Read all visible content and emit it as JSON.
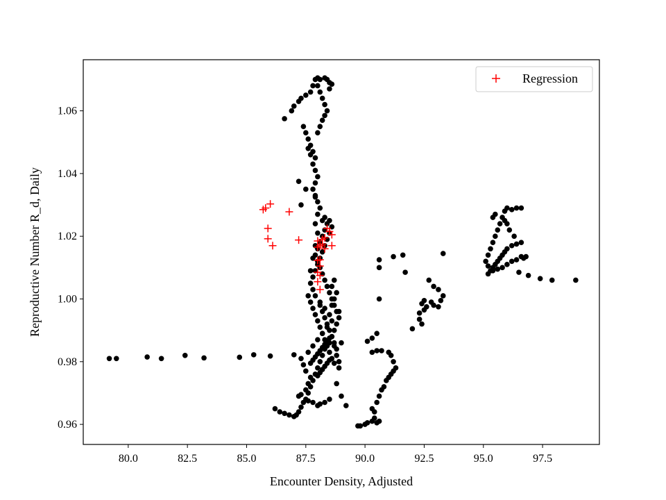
{
  "chart_data": {
    "type": "scatter",
    "xlabel": "Encounter Density, Adjusted",
    "ylabel": "Reproductive Number R_d, Daily",
    "xlim": [
      78.1,
      99.9
    ],
    "ylim": [
      0.9536,
      1.0763
    ],
    "xticks": [
      80.0,
      82.5,
      85.0,
      87.5,
      90.0,
      92.5,
      95.0,
      97.5
    ],
    "xtick_labels": [
      "80.0",
      "82.5",
      "85.0",
      "87.5",
      "90.0",
      "92.5",
      "95.0",
      "97.5"
    ],
    "yticks": [
      0.96,
      0.98,
      1.0,
      1.02,
      1.04,
      1.06
    ],
    "ytick_labels": [
      "0.96",
      "0.98",
      "1.00",
      "1.02",
      "1.04",
      "1.06"
    ],
    "grid": false,
    "legend": {
      "position": "top-right",
      "entries": [
        "Regression"
      ]
    },
    "series": [
      {
        "name": "",
        "marker": "circle",
        "color": "#000000",
        "points": [
          [
            79.2,
            0.981
          ],
          [
            79.5,
            0.981
          ],
          [
            80.8,
            0.9815
          ],
          [
            81.4,
            0.981
          ],
          [
            82.4,
            0.982
          ],
          [
            83.2,
            0.9812
          ],
          [
            84.7,
            0.9814
          ],
          [
            85.3,
            0.9822
          ],
          [
            86.0,
            0.9818
          ],
          [
            87.0,
            0.9822
          ],
          [
            86.2,
            0.965
          ],
          [
            86.4,
            0.964
          ],
          [
            86.6,
            0.9635
          ],
          [
            86.8,
            0.963
          ],
          [
            87.0,
            0.9625
          ],
          [
            87.1,
            0.963
          ],
          [
            87.2,
            0.964
          ],
          [
            87.3,
            0.9655
          ],
          [
            87.4,
            0.967
          ],
          [
            87.5,
            0.968
          ],
          [
            87.6,
            0.97
          ],
          [
            87.7,
            0.972
          ],
          [
            87.8,
            0.974
          ],
          [
            87.9,
            0.976
          ],
          [
            88.0,
            0.978
          ],
          [
            88.1,
            0.98
          ],
          [
            88.2,
            0.982
          ],
          [
            88.3,
            0.984
          ],
          [
            88.5,
            0.986
          ],
          [
            88.7,
            0.985
          ],
          [
            88.9,
            0.978
          ],
          [
            88.8,
            0.973
          ],
          [
            89.0,
            0.969
          ],
          [
            89.2,
            0.966
          ],
          [
            88.3,
            0.967
          ],
          [
            88.0,
            0.966
          ],
          [
            87.8,
            0.967
          ],
          [
            87.6,
            0.9675
          ],
          [
            88.5,
            0.968
          ],
          [
            88.1,
            0.9665
          ],
          [
            87.2,
            0.969
          ],
          [
            87.3,
            0.9695
          ],
          [
            87.5,
            0.971
          ],
          [
            87.6,
            0.973
          ],
          [
            87.7,
            0.975
          ],
          [
            87.5,
            0.977
          ],
          [
            87.3,
            0.981
          ],
          [
            87.4,
            0.979
          ],
          [
            87.6,
            0.983
          ],
          [
            87.8,
            0.985
          ],
          [
            88.0,
            0.987
          ],
          [
            88.2,
            0.989
          ],
          [
            88.4,
            0.991
          ],
          [
            88.6,
            0.993
          ],
          [
            88.5,
            0.995
          ],
          [
            88.3,
            0.997
          ],
          [
            88.1,
            0.999
          ],
          [
            87.9,
            1.001
          ],
          [
            87.8,
            1.003
          ],
          [
            87.7,
            1.005
          ],
          [
            87.8,
            1.007
          ],
          [
            87.9,
            1.009
          ],
          [
            88.0,
            1.011
          ],
          [
            88.1,
            1.013
          ],
          [
            88.2,
            1.015
          ],
          [
            88.3,
            1.017
          ],
          [
            88.4,
            1.019
          ],
          [
            88.5,
            1.021
          ],
          [
            88.6,
            1.023
          ],
          [
            88.5,
            1.025
          ],
          [
            88.3,
            1.026
          ],
          [
            88.2,
            1.025
          ],
          [
            88.4,
            1.024
          ],
          [
            88.3,
            1.022
          ],
          [
            88.2,
            1.02
          ],
          [
            88.1,
            1.018
          ],
          [
            88.0,
            1.016
          ],
          [
            87.9,
            1.014
          ],
          [
            88.0,
            1.012
          ],
          [
            88.1,
            1.01
          ],
          [
            88.2,
            1.008
          ],
          [
            88.3,
            1.006
          ],
          [
            88.4,
            1.004
          ],
          [
            88.5,
            1.002
          ],
          [
            88.6,
            1.0
          ],
          [
            88.7,
            0.998
          ],
          [
            88.8,
            0.996
          ],
          [
            88.9,
            0.994
          ],
          [
            88.8,
            0.992
          ],
          [
            88.7,
            0.99
          ],
          [
            88.6,
            0.988
          ],
          [
            88.5,
            0.9875
          ],
          [
            88.4,
            0.9865
          ],
          [
            88.3,
            0.9855
          ],
          [
            88.2,
            0.9845
          ],
          [
            88.1,
            0.9835
          ],
          [
            88.0,
            0.9825
          ],
          [
            87.9,
            0.9815
          ],
          [
            87.8,
            0.9805
          ],
          [
            87.7,
            0.9795
          ],
          [
            88.7,
            1.006
          ],
          [
            88.6,
            1.004
          ],
          [
            88.8,
            1.002
          ],
          [
            88.7,
            1.0
          ],
          [
            88.6,
            0.998
          ],
          [
            88.9,
            0.996
          ],
          [
            89.0,
            0.986
          ],
          [
            88.8,
            0.982
          ],
          [
            88.9,
            0.98
          ],
          [
            88.7,
            0.9795
          ],
          [
            88.6,
            0.981
          ],
          [
            88.5,
            0.983
          ],
          [
            88.4,
            0.985
          ],
          [
            88.3,
            0.987
          ],
          [
            88.2,
            0.989
          ],
          [
            88.1,
            0.991
          ],
          [
            88.0,
            0.993
          ],
          [
            87.9,
            0.995
          ],
          [
            87.8,
            0.997
          ],
          [
            87.7,
            0.999
          ],
          [
            87.6,
            1.001
          ],
          [
            87.7,
            1.009
          ],
          [
            87.8,
            1.013
          ],
          [
            87.9,
            1.017
          ],
          [
            88.0,
            1.021
          ],
          [
            87.9,
            1.024
          ],
          [
            88.0,
            1.027
          ],
          [
            88.1,
            1.029
          ],
          [
            88.0,
            1.031
          ],
          [
            87.9,
            1.033
          ],
          [
            87.8,
            1.035
          ],
          [
            87.9,
            1.037
          ],
          [
            88.0,
            1.039
          ],
          [
            87.9,
            1.041
          ],
          [
            87.8,
            1.043
          ],
          [
            87.9,
            1.045
          ],
          [
            87.8,
            1.047
          ],
          [
            87.7,
            1.049
          ],
          [
            87.6,
            1.051
          ],
          [
            87.5,
            1.053
          ],
          [
            87.4,
            1.055
          ],
          [
            87.6,
            1.048
          ],
          [
            87.7,
            1.046
          ],
          [
            87.2,
            1.0375
          ],
          [
            87.5,
            1.035
          ],
          [
            87.3,
            1.03
          ],
          [
            87.9,
            1.0325
          ],
          [
            86.6,
            1.0575
          ],
          [
            86.9,
            1.06
          ],
          [
            87.0,
            1.0615
          ],
          [
            87.2,
            1.063
          ],
          [
            87.3,
            1.064
          ],
          [
            87.5,
            1.065
          ],
          [
            87.7,
            1.066
          ],
          [
            87.8,
            1.068
          ],
          [
            87.9,
            1.07
          ],
          [
            88.0,
            1.0705
          ],
          [
            88.1,
            1.07
          ],
          [
            88.0,
            1.068
          ],
          [
            88.1,
            1.066
          ],
          [
            88.2,
            1.064
          ],
          [
            88.3,
            1.062
          ],
          [
            88.4,
            1.06
          ],
          [
            88.3,
            1.0585
          ],
          [
            88.2,
            1.057
          ],
          [
            88.1,
            1.055
          ],
          [
            88.0,
            1.053
          ],
          [
            88.4,
            1.07
          ],
          [
            88.5,
            1.069
          ],
          [
            88.6,
            1.0685
          ],
          [
            88.5,
            1.067
          ],
          [
            88.3,
            1.0705
          ],
          [
            88.1,
            0.998
          ],
          [
            88.2,
            0.996
          ],
          [
            88.3,
            0.994
          ],
          [
            88.4,
            0.992
          ],
          [
            88.5,
            0.99
          ],
          [
            88.6,
            0.988
          ],
          [
            88.7,
            0.986
          ],
          [
            88.8,
            0.984
          ],
          [
            88.3,
            0.9785
          ],
          [
            88.4,
            0.9795
          ],
          [
            88.5,
            0.9805
          ],
          [
            88.2,
            0.9775
          ],
          [
            88.1,
            0.9765
          ],
          [
            88.0,
            0.9755
          ],
          [
            89.7,
            0.9595
          ],
          [
            89.8,
            0.9595
          ],
          [
            90.0,
            0.96
          ],
          [
            90.1,
            0.9605
          ],
          [
            90.3,
            0.961
          ],
          [
            90.4,
            0.962
          ],
          [
            90.5,
            0.9605
          ],
          [
            90.6,
            0.961
          ],
          [
            90.4,
            0.964
          ],
          [
            90.3,
            0.965
          ],
          [
            90.5,
            0.967
          ],
          [
            90.6,
            0.969
          ],
          [
            90.7,
            0.971
          ],
          [
            90.8,
            0.972
          ],
          [
            90.9,
            0.974
          ],
          [
            91.0,
            0.975
          ],
          [
            91.1,
            0.976
          ],
          [
            91.2,
            0.977
          ],
          [
            91.3,
            0.978
          ],
          [
            91.2,
            0.98
          ],
          [
            91.1,
            0.982
          ],
          [
            91.0,
            0.983
          ],
          [
            90.7,
            0.9835
          ],
          [
            90.5,
            0.9835
          ],
          [
            90.3,
            0.983
          ],
          [
            90.5,
            0.989
          ],
          [
            90.3,
            0.9875
          ],
          [
            90.1,
            0.9865
          ],
          [
            90.6,
            1.0
          ],
          [
            90.6,
            1.01
          ],
          [
            90.6,
            1.0125
          ],
          [
            91.2,
            1.0135
          ],
          [
            91.6,
            1.014
          ],
          [
            91.7,
            1.0085
          ],
          [
            92.0,
            0.9905
          ],
          [
            92.3,
            0.9955
          ],
          [
            92.3,
            0.9935
          ],
          [
            92.4,
            0.992
          ],
          [
            92.4,
            0.9985
          ],
          [
            92.5,
            0.9995
          ],
          [
            92.8,
            0.999
          ],
          [
            92.9,
            0.998
          ],
          [
            93.1,
            0.9975
          ],
          [
            93.2,
            0.9995
          ],
          [
            93.3,
            1.001
          ],
          [
            93.1,
            1.003
          ],
          [
            92.9,
            1.004
          ],
          [
            92.7,
            1.006
          ],
          [
            93.3,
            1.0145
          ],
          [
            92.5,
            0.9965
          ],
          [
            92.6,
            0.9975
          ],
          [
            95.2,
            1.008
          ],
          [
            95.3,
            1.009
          ],
          [
            95.4,
            1.01
          ],
          [
            95.5,
            1.011
          ],
          [
            95.6,
            1.012
          ],
          [
            95.7,
            1.013
          ],
          [
            95.8,
            1.014
          ],
          [
            95.9,
            1.015
          ],
          [
            96.0,
            1.016
          ],
          [
            96.2,
            1.017
          ],
          [
            96.4,
            1.0175
          ],
          [
            96.6,
            1.018
          ],
          [
            96.8,
            1.0135
          ],
          [
            96.7,
            1.013
          ],
          [
            96.6,
            1.0135
          ],
          [
            96.4,
            1.0125
          ],
          [
            96.2,
            1.012
          ],
          [
            96.0,
            1.011
          ],
          [
            95.8,
            1.01
          ],
          [
            95.6,
            1.0095
          ],
          [
            95.4,
            1.009
          ],
          [
            95.2,
            1.0105
          ],
          [
            95.1,
            1.012
          ],
          [
            95.2,
            1.014
          ],
          [
            95.3,
            1.016
          ],
          [
            95.4,
            1.018
          ],
          [
            95.5,
            1.02
          ],
          [
            95.6,
            1.022
          ],
          [
            95.7,
            1.024
          ],
          [
            95.8,
            1.026
          ],
          [
            95.9,
            1.028
          ],
          [
            96.0,
            1.029
          ],
          [
            96.2,
            1.0285
          ],
          [
            96.4,
            1.029
          ],
          [
            96.6,
            1.029
          ],
          [
            95.5,
            1.027
          ],
          [
            95.4,
            1.026
          ],
          [
            96.5,
            1.0085
          ],
          [
            96.9,
            1.0075
          ],
          [
            97.4,
            1.0065
          ],
          [
            97.9,
            1.006
          ],
          [
            98.9,
            1.006
          ],
          [
            96.3,
            1.02
          ],
          [
            96.1,
            1.022
          ],
          [
            96.0,
            1.024
          ],
          [
            95.9,
            1.025
          ]
        ]
      },
      {
        "name": "Regression",
        "marker": "plus",
        "color": "#ff0000",
        "points": [
          [
            85.7,
            1.0285
          ],
          [
            85.8,
            1.029
          ],
          [
            86.0,
            1.0303
          ],
          [
            86.8,
            1.0278
          ],
          [
            85.9,
            1.0225
          ],
          [
            85.9,
            1.0192
          ],
          [
            86.1,
            1.017
          ],
          [
            87.2,
            1.0188
          ],
          [
            88.0,
            1.0185
          ],
          [
            88.0,
            1.0165
          ],
          [
            88.1,
            1.017
          ],
          [
            88.2,
            1.0175
          ],
          [
            88.2,
            1.019
          ],
          [
            88.3,
            1.0195
          ],
          [
            88.3,
            1.016
          ],
          [
            88.4,
            1.0225
          ],
          [
            88.5,
            1.0215
          ],
          [
            88.6,
            1.0205
          ],
          [
            88.6,
            1.017
          ],
          [
            88.1,
            1.0125
          ],
          [
            88.0,
            1.0123
          ],
          [
            88.1,
            1.0105
          ],
          [
            88.0,
            1.0085
          ],
          [
            88.1,
            1.0075
          ],
          [
            88.0,
            1.0055
          ],
          [
            88.1,
            1.003
          ]
        ]
      }
    ]
  }
}
